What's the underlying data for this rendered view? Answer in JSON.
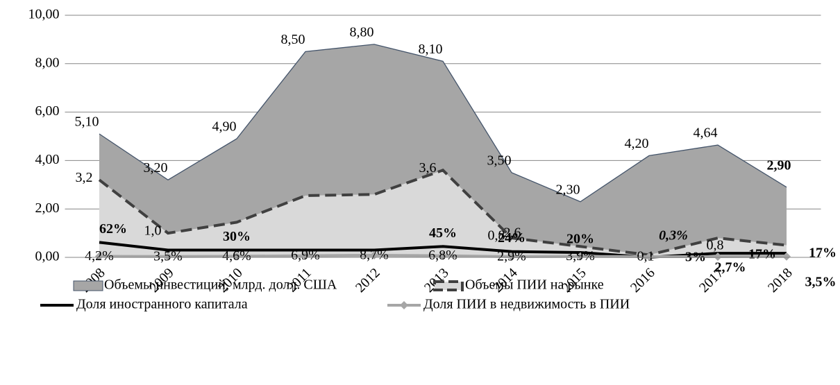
{
  "chart_data": {
    "type": "area",
    "categories": [
      "2008",
      "2009",
      "2010",
      "2011",
      "2012",
      "2013",
      "2014",
      "2015",
      "2016",
      "2017",
      "2018"
    ],
    "series": [
      {
        "name": "Объемы инвестиций, млрд. долл. США",
        "type": "area",
        "color": "#a6a6a6",
        "values": [
          5.1,
          3.2,
          4.9,
          8.5,
          8.8,
          8.1,
          3.5,
          2.3,
          4.2,
          4.64,
          2.9
        ],
        "value_labels": [
          "5,10",
          "3,20",
          "4,90",
          "8,50",
          "8,80",
          "8,10",
          "3,50",
          "2,30",
          "4,20",
          "4,64",
          "2,90"
        ]
      },
      {
        "name": "Объемы ПИИ на рынке",
        "type": "area",
        "color": "#d9d9d9",
        "line_color": "#404040",
        "dashed": true,
        "values": [
          3.2,
          1.0,
          1.45,
          2.55,
          2.6,
          3.6,
          0.8,
          0.45,
          0.1,
          0.8,
          0.5
        ],
        "value_labels": [
          "3,2",
          "1,0",
          null,
          null,
          "2,6",
          "3,6",
          "0,8",
          null,
          "0,1",
          "0,8",
          null
        ]
      },
      {
        "name": "Доля иностранного капитала",
        "type": "line",
        "color": "#000000",
        "values": [
          0.62,
          0.3,
          0.3,
          0.3,
          0.3,
          0.45,
          0.24,
          0.2,
          0.003,
          0.17,
          0.17
        ],
        "value_labels": [
          "62%",
          null,
          "30%",
          null,
          null,
          "45%",
          "24%",
          "20%",
          "0,3%",
          "17%",
          "17%"
        ]
      },
      {
        "name": "Доля ПИИ в недвижимость в ПИИ",
        "type": "line",
        "color": "#a6a6a6",
        "marker": "diamond",
        "values": [
          0.042,
          0.035,
          0.046,
          0.069,
          0.087,
          0.068,
          0.029,
          0.039,
          0.03,
          0.027,
          0.035
        ],
        "value_labels": [
          "4,2%",
          "3,5%",
          "4,6%",
          "6,9%",
          "8,7%",
          "6,8%",
          "2,9%",
          "3,9%",
          "3%",
          "2,7%",
          "3,5%"
        ]
      }
    ],
    "ylim": [
      0,
      10
    ],
    "yticks": [
      {
        "value": 0,
        "label": "0,00"
      },
      {
        "value": 2,
        "label": "2,00"
      },
      {
        "value": 4,
        "label": "4,00"
      },
      {
        "value": 6,
        "label": "6,00"
      },
      {
        "value": 8,
        "label": "8,00"
      },
      {
        "value": 10,
        "label": "10,00"
      }
    ],
    "grid": true,
    "legend": "bottom"
  }
}
